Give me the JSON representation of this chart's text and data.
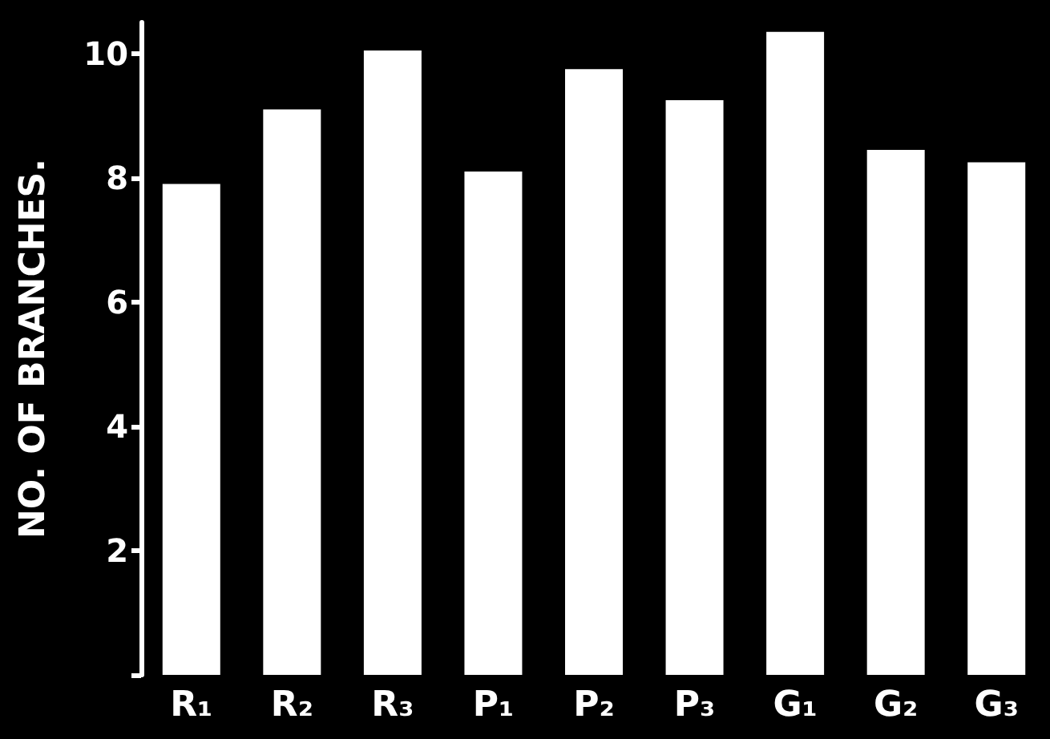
{
  "chart_data": {
    "type": "bar",
    "ylabel": "NO. OF BRANCHES.",
    "categories": [
      "R₁",
      "R₂",
      "R₃",
      "P₁",
      "P₂",
      "P₃",
      "G₁",
      "G₂",
      "G₃"
    ],
    "values": [
      7.9,
      9.1,
      10.05,
      8.1,
      9.75,
      9.25,
      10.35,
      8.45,
      8.25
    ],
    "color": "#ffffff",
    "ylim": [
      0,
      10.5
    ],
    "yticks": [
      {
        "value": 0,
        "label": null
      },
      2,
      4,
      6,
      8,
      10
    ],
    "grid": false
  }
}
